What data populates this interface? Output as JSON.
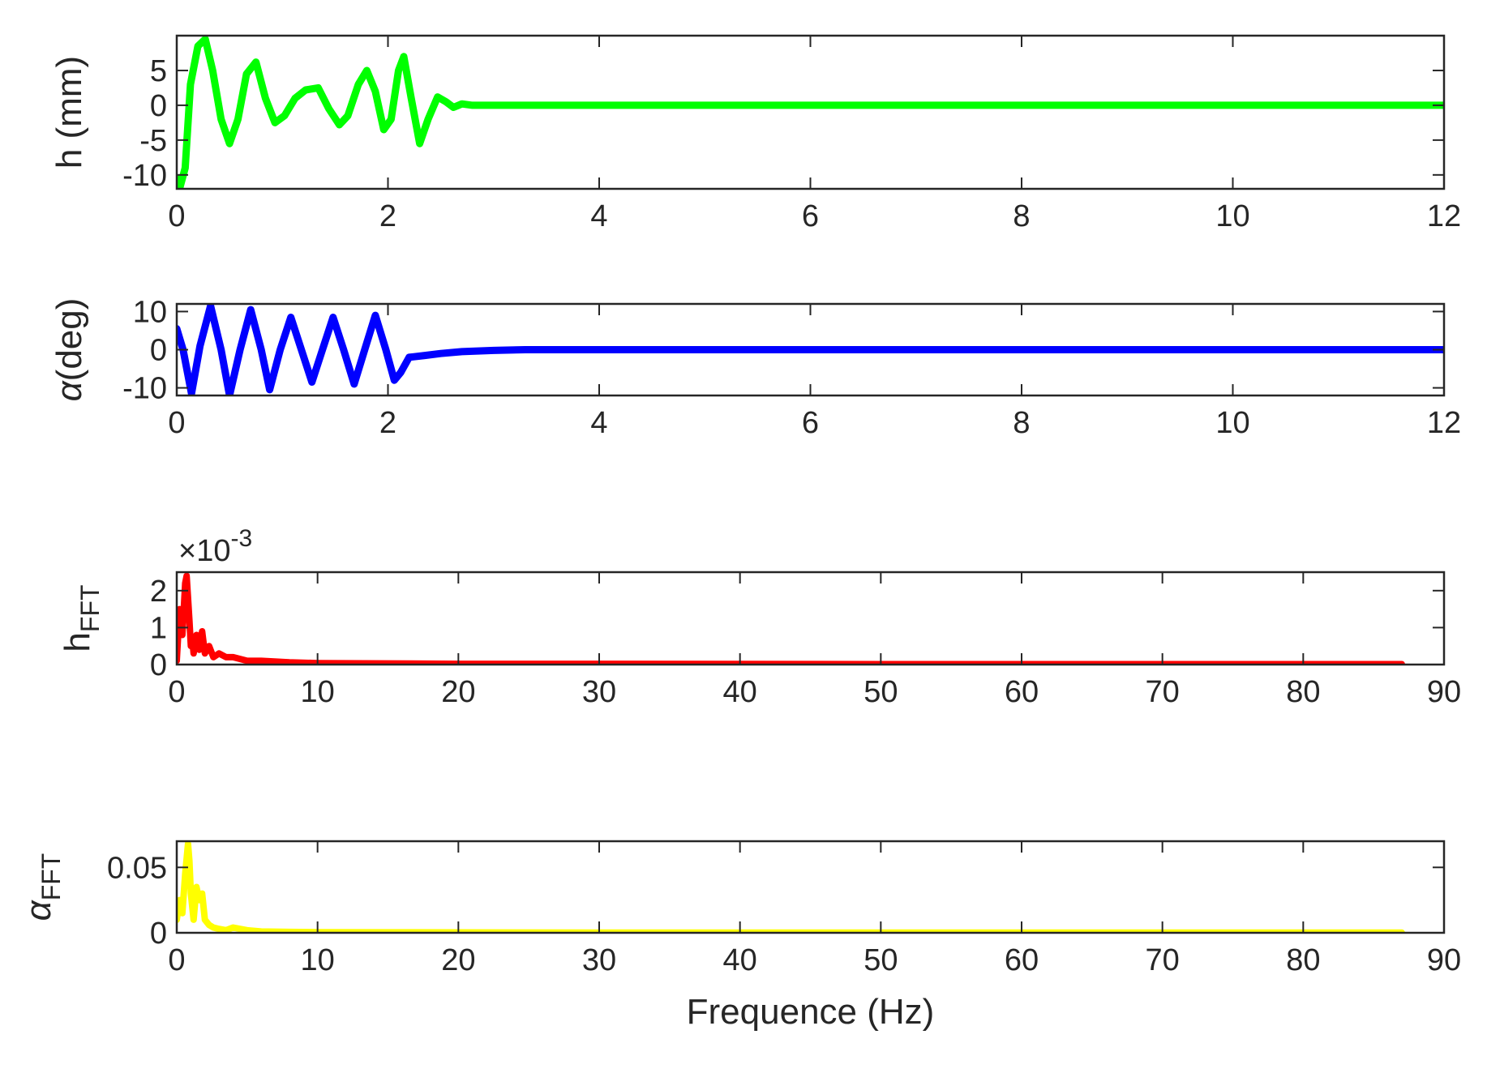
{
  "chart_data": [
    {
      "id": "panel-h",
      "type": "line",
      "ylabel": "h (mm)",
      "xlabel": "",
      "xlim": [
        0,
        12
      ],
      "ylim": [
        -12,
        10
      ],
      "xticks": [
        "0",
        "2",
        "4",
        "6",
        "8",
        "10",
        "12"
      ],
      "yticks": [
        "-10",
        "-5",
        "0",
        "5"
      ],
      "ytick_values": [
        -10,
        -5,
        0,
        5
      ],
      "grid": false,
      "series": [
        {
          "color": "#00ff00",
          "x": [
            0,
            0.03,
            0.08,
            0.13,
            0.2,
            0.27,
            0.34,
            0.42,
            0.5,
            0.58,
            0.66,
            0.75,
            0.84,
            0.93,
            1.02,
            1.12,
            1.22,
            1.34,
            1.44,
            1.54,
            1.62,
            1.72,
            1.8,
            1.88,
            1.96,
            2.03,
            2.1,
            2.15,
            2.22,
            2.3,
            2.38,
            2.47,
            2.55,
            2.62,
            2.7,
            2.8,
            3.0,
            4.0,
            6.0,
            8.0,
            10.0,
            12.0
          ],
          "values": [
            -10.5,
            -11.8,
            -9,
            3,
            8.5,
            9.5,
            5,
            -2,
            -5.5,
            -2,
            4.5,
            6.2,
            1,
            -2.5,
            -1.5,
            1,
            2.2,
            2.5,
            -0.5,
            -2.8,
            -1.5,
            3,
            5,
            2,
            -3.5,
            -2,
            5,
            7,
            1,
            -5.5,
            -2,
            1.2,
            0.5,
            -0.3,
            0.2,
            0,
            0,
            0,
            0,
            0,
            0,
            0
          ]
        }
      ]
    },
    {
      "id": "panel-alpha",
      "type": "line",
      "ylabel": "α(deg)",
      "xlabel": "",
      "xlim": [
        0,
        12
      ],
      "ylim": [
        -12,
        12
      ],
      "xticks": [
        "0",
        "2",
        "4",
        "6",
        "8",
        "10",
        "12"
      ],
      "yticks": [
        "-10",
        "0",
        "10"
      ],
      "ytick_values": [
        -10,
        0,
        10
      ],
      "grid": false,
      "series": [
        {
          "color": "#0000ff",
          "x": [
            0,
            0.06,
            0.14,
            0.22,
            0.32,
            0.42,
            0.5,
            0.6,
            0.7,
            0.8,
            0.88,
            0.98,
            1.08,
            1.18,
            1.28,
            1.38,
            1.48,
            1.58,
            1.68,
            1.78,
            1.88,
            1.98,
            2.06,
            2.12,
            2.2,
            2.35,
            2.5,
            2.7,
            3.0,
            3.3,
            4.0,
            6.0,
            8.0,
            10.0,
            12.0
          ],
          "values": [
            5.5,
            0,
            -11.5,
            1,
            11.5,
            0,
            -12,
            0,
            10.5,
            0,
            -10.5,
            0,
            8.5,
            0,
            -8.5,
            0,
            8.5,
            0,
            -9,
            0,
            9,
            0,
            -8,
            -6,
            -2,
            -1.5,
            -1,
            -0.5,
            -0.2,
            0,
            0,
            0,
            0,
            0,
            0
          ]
        }
      ]
    },
    {
      "id": "panel-h-fft",
      "type": "line",
      "ylabel": "h",
      "ylabel_sub": "FFT",
      "xlabel": "",
      "multiplier": "×10",
      "multiplier_exp": "-3",
      "xlim": [
        0,
        90
      ],
      "ylim": [
        0,
        0.0025
      ],
      "xticks": [
        "0",
        "10",
        "20",
        "30",
        "40",
        "50",
        "60",
        "70",
        "80",
        "90"
      ],
      "yticks": [
        "0",
        "1",
        "2"
      ],
      "ytick_values": [
        0,
        0.001,
        0.002
      ],
      "grid": false,
      "series": [
        {
          "color": "#ff0000",
          "x": [
            0,
            0.2,
            0.4,
            0.6,
            0.7,
            0.8,
            0.9,
            1.0,
            1.1,
            1.2,
            1.4,
            1.6,
            1.8,
            2.0,
            2.3,
            2.6,
            3.0,
            3.5,
            4.0,
            5.0,
            6.0,
            8.0,
            10.0,
            15.0,
            20.0,
            30.0,
            50.0,
            70.0,
            87.0
          ],
          "values": [
            0.0001,
            0.0015,
            0.0008,
            0.0022,
            0.0024,
            0.0018,
            0.0012,
            0.0005,
            0.0007,
            0.0003,
            0.0008,
            0.0004,
            0.0009,
            0.0003,
            0.0005,
            0.0002,
            0.0003,
            0.0002,
            0.0002,
            0.0001,
            0.0001,
            6e-05,
            4e-05,
            3e-05,
            2e-05,
            2e-05,
            1e-05,
            1e-05,
            1e-05
          ]
        }
      ]
    },
    {
      "id": "panel-alpha-fft",
      "type": "line",
      "ylabel": "α",
      "ylabel_sub": "FFT",
      "xlabel": "Frequence (Hz)",
      "xlim": [
        0,
        90
      ],
      "ylim": [
        0,
        0.07
      ],
      "xticks": [
        "0",
        "10",
        "20",
        "30",
        "40",
        "50",
        "60",
        "70",
        "80",
        "90"
      ],
      "yticks": [
        "0",
        "0.05"
      ],
      "ytick_values": [
        0,
        0.05
      ],
      "grid": false,
      "series": [
        {
          "color": "#ffff00",
          "x": [
            0,
            0.2,
            0.4,
            0.6,
            0.8,
            0.9,
            1.0,
            1.1,
            1.2,
            1.4,
            1.6,
            1.8,
            2.0,
            2.3,
            2.6,
            3.0,
            3.5,
            4.0,
            4.5,
            5.0,
            6.0,
            8.0,
            10.0,
            15.0,
            20.0,
            30.0,
            50.0,
            70.0,
            87.0
          ],
          "values": [
            0.01,
            0.025,
            0.015,
            0.045,
            0.068,
            0.055,
            0.03,
            0.02,
            0.01,
            0.035,
            0.025,
            0.03,
            0.01,
            0.006,
            0.004,
            0.003,
            0.002,
            0.004,
            0.003,
            0.002,
            0.001,
            0.0007,
            0.0005,
            0.0004,
            0.0003,
            0.0002,
            0.0002,
            0.0001,
            0.0001
          ]
        }
      ]
    }
  ]
}
